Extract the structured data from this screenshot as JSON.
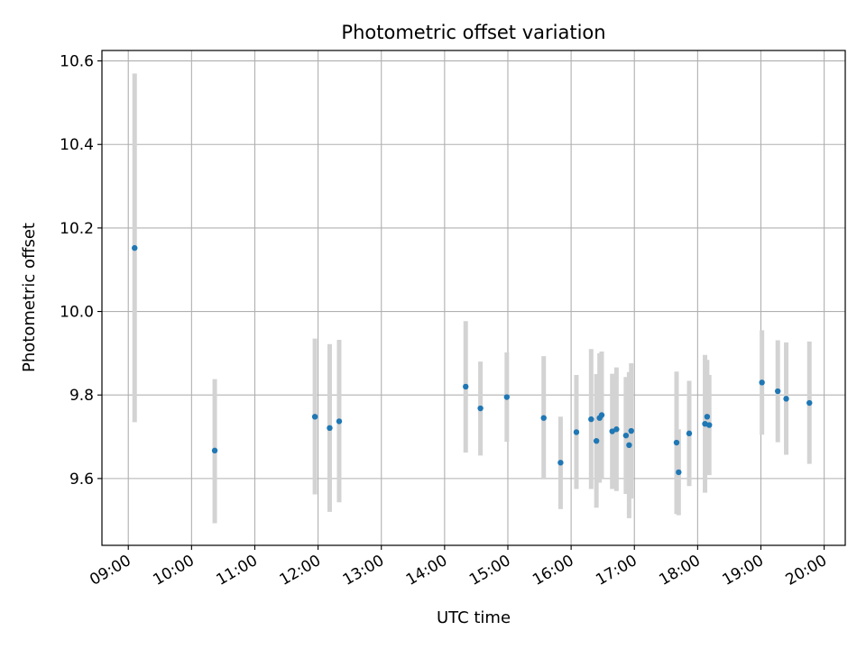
{
  "chart_data": {
    "type": "scatter",
    "title": "Photometric offset variation",
    "xlabel": "UTC time",
    "ylabel": "Photometric offset",
    "xlim": [
      "08:35",
      "20:20"
    ],
    "ylim": [
      9.44,
      10.625
    ],
    "x_ticks": [
      "09:00",
      "10:00",
      "11:00",
      "12:00",
      "13:00",
      "14:00",
      "15:00",
      "16:00",
      "17:00",
      "18:00",
      "19:00",
      "20:00"
    ],
    "y_ticks": [
      9.6,
      9.8,
      10.0,
      10.2,
      10.4,
      10.6
    ],
    "y_tick_labels": [
      "9.6",
      "9.8",
      "10.0",
      "10.2",
      "10.4",
      "10.6"
    ],
    "grid": true,
    "colors": {
      "point": "#1f77b4",
      "errorbar": "#d3d3d3",
      "grid": "#b0b0b0"
    },
    "points": [
      {
        "time": "09:06",
        "y": 10.152,
        "err_low": 9.735,
        "err_high": 10.57
      },
      {
        "time": "10:22",
        "y": 9.667,
        "err_low": 9.493,
        "err_high": 9.838
      },
      {
        "time": "11:57",
        "y": 9.748,
        "err_low": 9.562,
        "err_high": 9.935
      },
      {
        "time": "12:11",
        "y": 9.721,
        "err_low": 9.52,
        "err_high": 9.922
      },
      {
        "time": "12:20",
        "y": 9.737,
        "err_low": 9.543,
        "err_high": 9.932
      },
      {
        "time": "14:20",
        "y": 9.82,
        "err_low": 9.662,
        "err_high": 9.977
      },
      {
        "time": "14:34",
        "y": 9.768,
        "err_low": 9.655,
        "err_high": 9.88
      },
      {
        "time": "14:59",
        "y": 9.795,
        "err_low": 9.688,
        "err_high": 9.902
      },
      {
        "time": "15:34",
        "y": 9.745,
        "err_low": 9.598,
        "err_high": 9.893
      },
      {
        "time": "15:50",
        "y": 9.638,
        "err_low": 9.527,
        "err_high": 9.748
      },
      {
        "time": "16:05",
        "y": 9.711,
        "err_low": 9.575,
        "err_high": 9.848
      },
      {
        "time": "16:19",
        "y": 9.742,
        "err_low": 9.575,
        "err_high": 9.91
      },
      {
        "time": "16:24",
        "y": 9.69,
        "err_low": 9.53,
        "err_high": 9.85
      },
      {
        "time": "16:27",
        "y": 9.745,
        "err_low": 9.59,
        "err_high": 9.9
      },
      {
        "time": "16:29",
        "y": 9.752,
        "err_low": 9.6,
        "err_high": 9.904
      },
      {
        "time": "16:39",
        "y": 9.713,
        "err_low": 9.575,
        "err_high": 9.851
      },
      {
        "time": "16:43",
        "y": 9.718,
        "err_low": 9.57,
        "err_high": 9.866
      },
      {
        "time": "16:52",
        "y": 9.703,
        "err_low": 9.563,
        "err_high": 9.843
      },
      {
        "time": "16:55",
        "y": 9.68,
        "err_low": 9.505,
        "err_high": 9.855
      },
      {
        "time": "16:57",
        "y": 9.714,
        "err_low": 9.552,
        "err_high": 9.876
      },
      {
        "time": "17:40",
        "y": 9.686,
        "err_low": 9.515,
        "err_high": 9.856
      },
      {
        "time": "17:42",
        "y": 9.615,
        "err_low": 9.512,
        "err_high": 9.718
      },
      {
        "time": "17:52",
        "y": 9.708,
        "err_low": 9.582,
        "err_high": 9.834
      },
      {
        "time": "18:07",
        "y": 9.731,
        "err_low": 9.566,
        "err_high": 9.896
      },
      {
        "time": "18:09",
        "y": 9.748,
        "err_low": 9.612,
        "err_high": 9.884
      },
      {
        "time": "18:11",
        "y": 9.728,
        "err_low": 9.608,
        "err_high": 9.848
      },
      {
        "time": "19:01",
        "y": 9.83,
        "err_low": 9.705,
        "err_high": 9.955
      },
      {
        "time": "19:16",
        "y": 9.809,
        "err_low": 9.687,
        "err_high": 9.931
      },
      {
        "time": "19:24",
        "y": 9.791,
        "err_low": 9.657,
        "err_high": 9.926
      },
      {
        "time": "19:46",
        "y": 9.781,
        "err_low": 9.635,
        "err_high": 9.928
      }
    ]
  }
}
